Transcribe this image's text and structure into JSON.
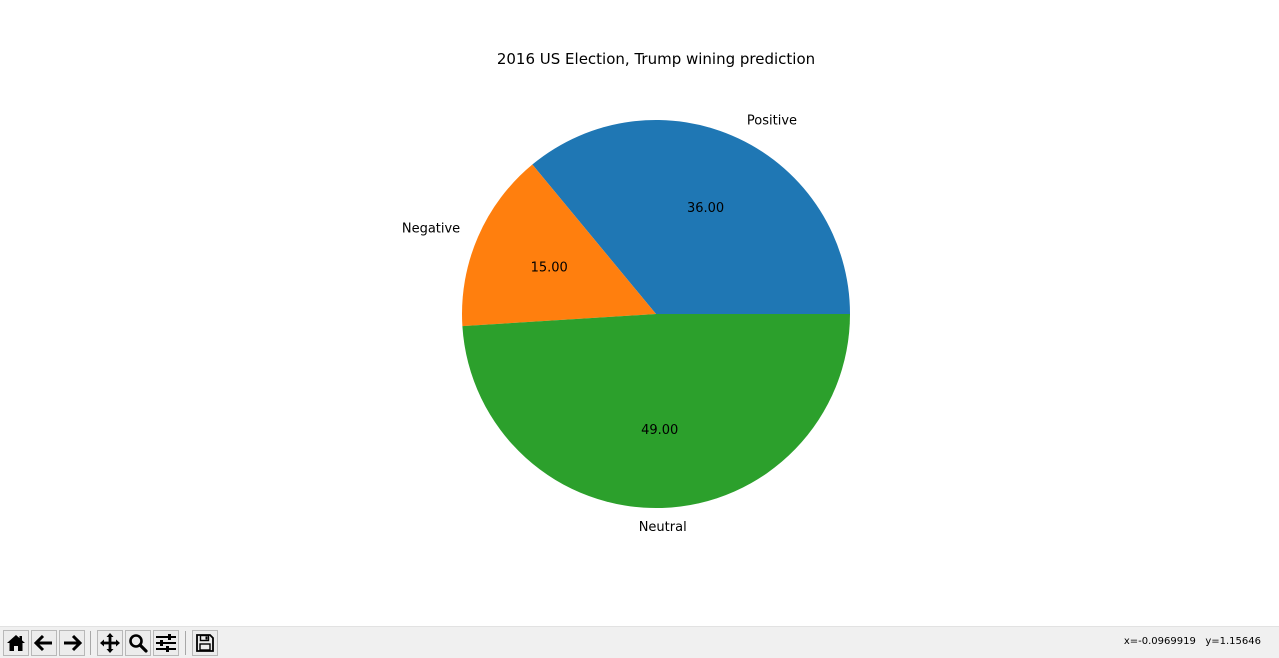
{
  "window": {
    "coords_readout": "x=-0.0969919   y=1.15646"
  },
  "toolbar": {
    "buttons": [
      {
        "name": "home-button",
        "icon": "home-icon"
      },
      {
        "name": "back-button",
        "icon": "arrow-left-icon"
      },
      {
        "name": "forward-button",
        "icon": "arrow-right-icon"
      },
      {
        "name": "pan-button",
        "icon": "move-icon"
      },
      {
        "name": "zoom-button",
        "icon": "magnifier-icon"
      },
      {
        "name": "configure-subplots-button",
        "icon": "sliders-icon"
      },
      {
        "name": "save-button",
        "icon": "floppy-disk-icon"
      }
    ]
  },
  "chart_data": {
    "type": "pie",
    "title": "2016 US Election, Trump wining prediction",
    "start_angle": 0,
    "counterclockwise": true,
    "slices": [
      {
        "label": "Positive",
        "value": 36.0,
        "pct_label": "36.00",
        "color": "#1f77b4"
      },
      {
        "label": "Negative",
        "value": 15.0,
        "pct_label": "15.00",
        "color": "#ff7f0e"
      },
      {
        "label": "Neutral",
        "value": 49.0,
        "pct_label": "49.00",
        "color": "#2ca02c"
      }
    ]
  }
}
